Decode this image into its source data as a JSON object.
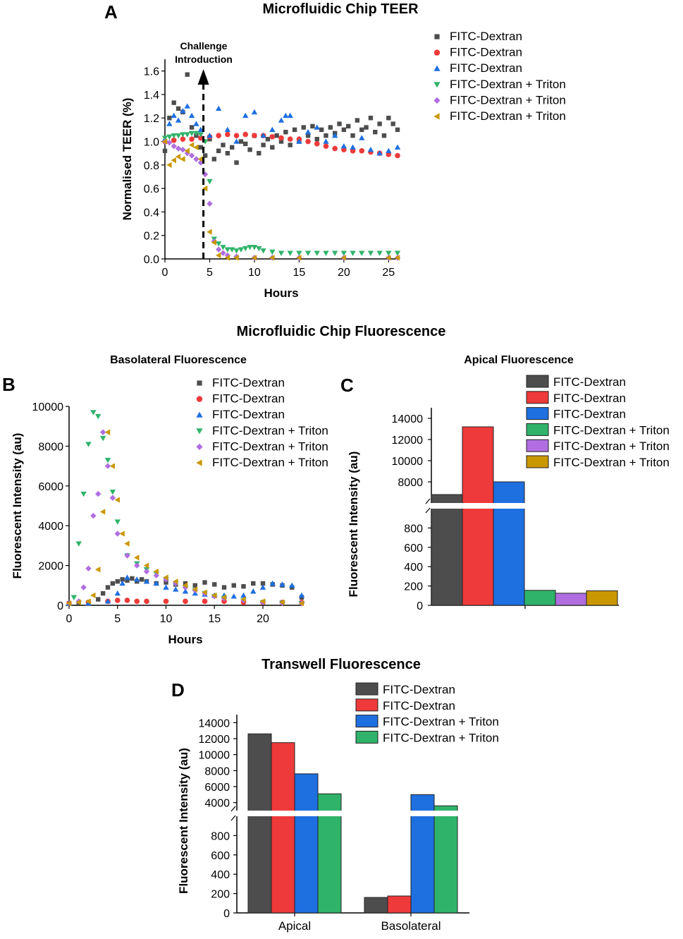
{
  "colors": {
    "black": "#4d4d4d",
    "red": "#ee3a3a",
    "blue": "#1e6fe0",
    "green": "#2fb36a",
    "purple": "#b06ee0",
    "gold": "#c99700"
  },
  "panel_a": {
    "letter": "A",
    "title": "Microfluidic Chip TEER",
    "annotation_line1": "Challenge",
    "annotation_line2": "Introduction"
  },
  "section_title": "Microfluidic Chip Fluorescence",
  "panel_b": {
    "letter": "B",
    "subtitle": "Basolateral Fluorescence"
  },
  "panel_c": {
    "letter": "C",
    "subtitle": "Apical Fluorescence"
  },
  "panel_d": {
    "letter": "D",
    "title": "Transwell Fluorescence"
  },
  "chart_data": [
    {
      "id": "A",
      "type": "scatter",
      "title": "Microfluidic Chip TEER",
      "xlabel": "Hours",
      "ylabel": "Normalised TEER (%)",
      "xlim": [
        0,
        26
      ],
      "ylim": [
        0,
        1.7
      ],
      "xticks": [
        0,
        5,
        10,
        15,
        20,
        25
      ],
      "yticks": [
        0.0,
        0.2,
        0.4,
        0.6,
        0.8,
        1.0,
        1.2,
        1.4,
        1.6
      ],
      "ytick_labels": [
        "0.0",
        "0.2",
        "0.4",
        "0.6",
        "0.8",
        "1.0",
        "1.2",
        "1.4",
        "1.6"
      ],
      "challenge_x": 4.3,
      "legend_position": "top-right",
      "series": [
        {
          "name": "FITC-Dextran",
          "marker": "square",
          "color": "#4d4d4d",
          "x": [
            0,
            0.5,
            1,
            1.5,
            2,
            2.5,
            3,
            3.5,
            4,
            4.5,
            5,
            5.5,
            6,
            6.5,
            7,
            7.5,
            8,
            8.5,
            9,
            9.5,
            10,
            10.5,
            11,
            11.5,
            12,
            12.5,
            13,
            13.5,
            14,
            14.5,
            15,
            15.5,
            16,
            16.5,
            17,
            17.5,
            18,
            18.5,
            19,
            19.5,
            20,
            20.5,
            21,
            21.5,
            22,
            22.5,
            23,
            23.5,
            24,
            24.5,
            25,
            25.5,
            26
          ],
          "y": [
            0.92,
            1.2,
            1.33,
            1.28,
            1.25,
            1.57,
            1.12,
            1.05,
            0.95,
            0.88,
            1.02,
            0.85,
            0.92,
            0.97,
            0.9,
            0.95,
            0.82,
            1.0,
            0.98,
            0.93,
            1.05,
            0.9,
            0.97,
            1.02,
            0.95,
            1.05,
            1.0,
            1.08,
            0.97,
            1.1,
            1.0,
            1.12,
            1.05,
            1.13,
            1.02,
            1.1,
            1.05,
            1.12,
            1.07,
            1.15,
            1.1,
            1.13,
            1.05,
            1.18,
            1.1,
            1.12,
            1.2,
            1.08,
            1.15,
            1.05,
            1.2,
            1.15,
            1.1
          ]
        },
        {
          "name": "FITC-Dextran",
          "marker": "circle",
          "color": "#ee3a3a",
          "x": [
            0,
            1,
            2,
            3,
            4,
            5,
            6,
            7,
            8,
            9,
            10,
            11,
            12,
            13,
            14,
            15,
            16,
            17,
            18,
            19,
            20,
            21,
            22,
            23,
            24,
            25,
            26
          ],
          "y": [
            1.0,
            1.01,
            1.02,
            1.02,
            1.03,
            1.04,
            1.05,
            1.06,
            1.05,
            1.06,
            1.05,
            1.05,
            1.04,
            1.03,
            1.02,
            1.02,
            1.0,
            0.98,
            0.96,
            0.94,
            0.93,
            0.92,
            0.92,
            0.91,
            0.9,
            0.89,
            0.88
          ]
        },
        {
          "name": "FITC-Dextran",
          "marker": "triangle-up",
          "color": "#1e6fe0",
          "x": [
            0,
            0.5,
            1,
            1.5,
            2,
            2.5,
            3,
            3.5,
            4,
            5,
            6,
            7,
            8,
            9,
            10,
            11,
            12,
            13,
            13.5,
            14,
            15,
            16,
            17,
            18,
            19,
            20,
            21,
            22,
            23,
            24,
            25,
            26
          ],
          "y": [
            1.02,
            1.15,
            1.22,
            1.18,
            1.26,
            1.3,
            1.22,
            1.15,
            1.1,
            1.05,
            1.28,
            1.1,
            1.0,
            1.22,
            1.25,
            1.05,
            1.1,
            1.18,
            1.22,
            1.22,
            1.0,
            1.08,
            1.12,
            1.0,
            1.05,
            0.96,
            0.95,
            1.03,
            0.93,
            0.9,
            0.92,
            0.95
          ]
        },
        {
          "name": "FITC-Dextran + Triton",
          "marker": "triangle-down",
          "color": "#2fb36a",
          "x": [
            0,
            0.5,
            1,
            1.5,
            2,
            2.5,
            3,
            3.5,
            4,
            4.5,
            5,
            5.5,
            6,
            6.5,
            7,
            7.5,
            8,
            8.5,
            9,
            9.5,
            10,
            10.5,
            11,
            12,
            13,
            14,
            15,
            16,
            17,
            18,
            19,
            20,
            21,
            22,
            23,
            24,
            25,
            26
          ],
          "y": [
            1.03,
            1.04,
            1.05,
            1.05,
            1.06,
            1.06,
            1.07,
            1.07,
            1.06,
            1.0,
            0.66,
            0.17,
            0.13,
            0.1,
            0.08,
            0.08,
            0.07,
            0.08,
            0.09,
            0.1,
            0.1,
            0.09,
            0.07,
            0.06,
            0.05,
            0.05,
            0.05,
            0.05,
            0.05,
            0.05,
            0.05,
            0.05,
            0.05,
            0.05,
            0.05,
            0.05,
            0.05,
            0.05
          ]
        },
        {
          "name": "FITC-Dextran + Triton",
          "marker": "diamond",
          "color": "#b06ee0",
          "x": [
            0,
            0.5,
            1,
            1.5,
            2,
            2.5,
            3,
            3.5,
            4,
            4.5,
            5,
            5.5,
            6,
            6.5,
            7,
            8,
            10,
            12,
            15,
            20,
            25,
            26
          ],
          "y": [
            1.0,
            0.99,
            0.96,
            0.94,
            0.93,
            0.9,
            0.88,
            0.85,
            0.82,
            0.72,
            0.47,
            0.15,
            0.08,
            0.05,
            0.03,
            0.02,
            0.01,
            0.01,
            0.01,
            0.01,
            0.01,
            0.01
          ]
        },
        {
          "name": "FITC-Dextran + Triton",
          "marker": "triangle-left",
          "color": "#c99700",
          "x": [
            0,
            0.5,
            1,
            1.5,
            2,
            2.5,
            3,
            3.5,
            4,
            4.5,
            5,
            5.5,
            6,
            7,
            8,
            10,
            12,
            15,
            20,
            25,
            26
          ],
          "y": [
            1.0,
            0.8,
            0.84,
            0.87,
            0.85,
            0.92,
            0.97,
            0.95,
            0.85,
            0.6,
            0.23,
            0.14,
            0.03,
            0.01,
            0.01,
            0.01,
            0.01,
            0.01,
            0.01,
            0.01,
            0.01
          ]
        }
      ]
    },
    {
      "id": "B",
      "type": "scatter",
      "title": "Basolateral Fluorescence",
      "xlabel": "Hours",
      "ylabel": "Fluorescent Intensity (au)",
      "xlim": [
        0,
        24
      ],
      "ylim": [
        0,
        10000
      ],
      "xticks": [
        0,
        5,
        10,
        15,
        20
      ],
      "yticks": [
        0,
        2000,
        4000,
        6000,
        8000,
        10000
      ],
      "legend_position": "top-right",
      "series": [
        {
          "name": "FITC-Dextran",
          "marker": "square",
          "color": "#4d4d4d",
          "x": [
            0,
            1,
            2,
            3,
            3.5,
            4,
            4.5,
            5,
            5.5,
            6,
            6.5,
            7,
            7.5,
            8,
            9,
            10,
            11,
            12,
            13,
            14,
            15,
            16,
            17,
            18,
            19,
            20,
            21,
            22,
            23,
            24
          ],
          "y": [
            100,
            120,
            150,
            300,
            600,
            900,
            1100,
            1200,
            1300,
            1250,
            1350,
            1200,
            1300,
            1200,
            1100,
            1150,
            1050,
            1100,
            1000,
            1150,
            1050,
            900,
            1000,
            950,
            1100,
            1100,
            1050,
            1000,
            900,
            400
          ]
        },
        {
          "name": "FITC-Dextran",
          "marker": "circle",
          "color": "#ee3a3a",
          "x": [
            0,
            2,
            4,
            5,
            6,
            7,
            8,
            10,
            12,
            14,
            16,
            18,
            20,
            22,
            24
          ],
          "y": [
            100,
            150,
            200,
            250,
            250,
            200,
            200,
            200,
            200,
            200,
            200,
            150,
            150,
            150,
            150
          ]
        },
        {
          "name": "FITC-Dextran",
          "marker": "triangle-up",
          "color": "#1e6fe0",
          "x": [
            0,
            2,
            4,
            5,
            5.5,
            6,
            7,
            8,
            9,
            10,
            11,
            12,
            13,
            14,
            15,
            16,
            17,
            18,
            19,
            20,
            21,
            22,
            23,
            24
          ],
          "y": [
            100,
            100,
            200,
            600,
            1100,
            1400,
            1300,
            1200,
            1100,
            900,
            800,
            700,
            600,
            550,
            500,
            500,
            450,
            500,
            700,
            900,
            1100,
            1050,
            1000,
            500
          ]
        },
        {
          "name": "FITC-Dextran + Triton",
          "marker": "triangle-down",
          "color": "#2fb36a",
          "x": [
            0.5,
            1,
            1.5,
            2,
            2.5,
            3,
            3.5,
            4,
            4.5,
            5,
            6,
            7,
            8,
            9,
            10,
            11,
            12,
            13,
            14,
            15,
            16,
            18,
            20,
            22,
            24
          ],
          "y": [
            400,
            3100,
            5600,
            8100,
            9700,
            9500,
            8400,
            7300,
            5700,
            4200,
            2500,
            2100,
            1800,
            1600,
            1300,
            1100,
            900,
            750,
            600,
            450,
            350,
            250,
            150,
            120,
            100
          ]
        },
        {
          "name": "FITC-Dextran + Triton",
          "marker": "diamond",
          "color": "#b06ee0",
          "x": [
            1,
            1.5,
            2,
            2.5,
            3,
            3.5,
            4,
            4.5,
            5,
            6,
            7,
            8,
            9,
            10,
            11,
            12,
            13,
            14,
            15,
            16,
            18,
            20,
            22,
            24
          ],
          "y": [
            200,
            900,
            1850,
            4500,
            5600,
            8700,
            7000,
            5400,
            3600,
            2500,
            2000,
            1700,
            1500,
            1300,
            1100,
            900,
            750,
            600,
            450,
            350,
            250,
            150,
            120,
            100
          ]
        },
        {
          "name": "FITC-Dextran + Triton",
          "marker": "triangle-left",
          "color": "#c99700",
          "x": [
            0,
            1,
            2,
            2.5,
            3,
            3.5,
            4,
            4.5,
            5,
            5.5,
            6,
            7,
            8,
            9,
            10,
            11,
            12,
            13,
            14,
            15,
            16,
            18,
            20,
            22,
            24
          ],
          "y": [
            100,
            150,
            200,
            500,
            1800,
            4700,
            8700,
            7000,
            5300,
            3600,
            3100,
            2400,
            2000,
            1700,
            1400,
            1200,
            1000,
            800,
            650,
            500,
            400,
            300,
            200,
            150,
            100
          ]
        }
      ]
    },
    {
      "id": "C",
      "type": "bar",
      "title": "Apical Fluorescence",
      "ylabel": "Fluorescent Intensity (au)",
      "axis_break": {
        "lower": [
          0,
          1000
        ],
        "upper": [
          6000,
          15000
        ]
      },
      "yticks_lower": [
        0,
        200,
        400,
        600,
        800
      ],
      "yticks_upper": [
        8000,
        10000,
        12000,
        14000
      ],
      "legend_position": "top-right",
      "series": [
        {
          "name": "FITC-Dextran",
          "value": 6800,
          "color": "#4d4d4d"
        },
        {
          "name": "FITC-Dextran",
          "value": 13200,
          "color": "#ee3a3a"
        },
        {
          "name": "FITC-Dextran",
          "value": 8000,
          "color": "#1e6fe0"
        },
        {
          "name": "FITC-Dextran + Triton",
          "value": 155,
          "color": "#2fb36a"
        },
        {
          "name": "FITC-Dextran + Triton",
          "value": 125,
          "color": "#b06ee0"
        },
        {
          "name": "FITC-Dextran + Triton",
          "value": 150,
          "color": "#c99700"
        }
      ]
    },
    {
      "id": "D",
      "type": "bar",
      "title": "Transwell Fluorescence",
      "ylabel": "Fluorescent Intensity (au)",
      "categories": [
        "Apical",
        "Basolateral"
      ],
      "axis_break": {
        "lower": [
          0,
          1000
        ],
        "upper": [
          3000,
          15000
        ]
      },
      "yticks_lower": [
        0,
        200,
        400,
        600,
        800
      ],
      "yticks_upper": [
        4000,
        6000,
        8000,
        10000,
        12000,
        14000
      ],
      "legend_position": "top-right",
      "series": [
        {
          "name": "FITC-Dextran",
          "color": "#4d4d4d",
          "values": [
            12600,
            160
          ]
        },
        {
          "name": "FITC-Dextran",
          "color": "#ee3a3a",
          "values": [
            11500,
            175
          ]
        },
        {
          "name": "FITC-Dextran + Triton",
          "color": "#1e6fe0",
          "values": [
            7600,
            5000
          ]
        },
        {
          "name": "FITC-Dextran + Triton",
          "color": "#2fb36a",
          "values": [
            5100,
            3600
          ]
        }
      ]
    }
  ]
}
